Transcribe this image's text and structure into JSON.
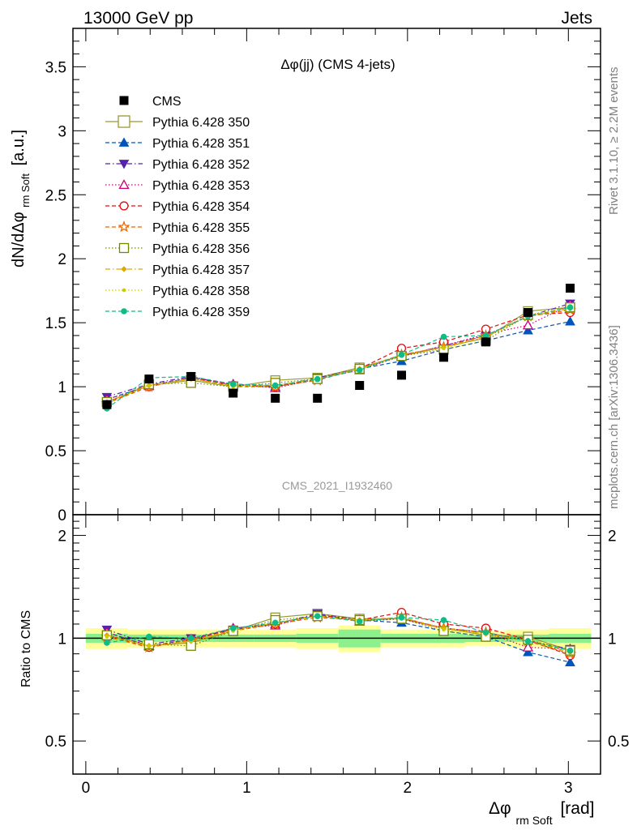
{
  "header": {
    "left": "13000 GeV pp",
    "right": "Jets",
    "side_top": "Rivet 3.1.10, ≥ 2.2M events",
    "side_bottom": "mcplots.cern.ch [arXiv:1306.3436]",
    "watermark": "CMS_2021_I1932460"
  },
  "colors": {
    "band_inner": "#8cf08c",
    "band_outer": "#ffff99",
    "data": "#000000"
  },
  "chart_data": [
    {
      "type": "line",
      "title": "Δφ(jj) (CMS 4-jets)",
      "ylabel_main": "dN/dΔφ",
      "ylabel_sub": "rm Soft",
      "ylabel_unit": "[a.u.]",
      "xlim": [
        -0.08,
        3.2
      ],
      "ylim": [
        0,
        3.8
      ],
      "yticks": [
        "0",
        "0.5",
        "1",
        "1.5",
        "2",
        "2.5",
        "3",
        "3.5"
      ],
      "legend_position": "top-left",
      "x": [
        0.131,
        0.393,
        0.654,
        0.916,
        1.178,
        1.44,
        1.702,
        1.963,
        2.225,
        2.487,
        2.749,
        3.011
      ],
      "data": {
        "name": "CMS",
        "values": [
          0.86,
          1.06,
          1.08,
          0.95,
          0.91,
          0.91,
          1.01,
          1.09,
          1.23,
          1.35,
          1.58,
          1.77
        ]
      },
      "series": [
        {
          "name": "Pythia 6.428 350",
          "color": "#999933",
          "marker": "square-open",
          "dash": "solid",
          "values": [
            0.88,
            1.01,
            1.05,
            1.0,
            1.05,
            1.07,
            1.15,
            1.24,
            1.31,
            1.38,
            1.59,
            1.62
          ]
        },
        {
          "name": "Pythia 6.428 351",
          "color": "#0055bb",
          "marker": "triangle-up",
          "dash": "dashed",
          "values": [
            0.9,
            1.01,
            1.07,
            1.02,
            1.0,
            1.06,
            1.14,
            1.2,
            1.29,
            1.36,
            1.44,
            1.51
          ]
        },
        {
          "name": "Pythia 6.428 352",
          "color": "#5522aa",
          "marker": "triangle-down",
          "dash": "dashdot",
          "values": [
            0.92,
            1.02,
            1.08,
            1.01,
            1.0,
            1.07,
            1.14,
            1.24,
            1.32,
            1.4,
            1.55,
            1.65
          ]
        },
        {
          "name": "Pythia 6.428 353",
          "color": "#cc0077",
          "marker": "triangle-open",
          "dash": "dotted",
          "values": [
            0.9,
            1.01,
            1.07,
            1.02,
            0.99,
            1.06,
            1.13,
            1.24,
            1.32,
            1.41,
            1.48,
            1.64
          ]
        },
        {
          "name": "Pythia 6.428 354",
          "color": "#dd1111",
          "marker": "circle-open",
          "dash": "dashed",
          "values": [
            0.88,
            1.0,
            1.07,
            1.01,
            1.0,
            1.06,
            1.14,
            1.3,
            1.35,
            1.45,
            1.56,
            1.58
          ]
        },
        {
          "name": "Pythia 6.428 355",
          "color": "#ee6600",
          "marker": "star-open",
          "dash": "dashed",
          "values": [
            0.87,
            1.0,
            1.07,
            1.0,
            1.0,
            1.05,
            1.14,
            1.25,
            1.31,
            1.4,
            1.55,
            1.6
          ]
        },
        {
          "name": "Pythia 6.428 356",
          "color": "#778800",
          "marker": "square-open",
          "dash": "dotted",
          "values": [
            0.88,
            1.02,
            1.03,
            1.0,
            1.03,
            1.06,
            1.14,
            1.24,
            1.29,
            1.36,
            1.56,
            1.62
          ]
        },
        {
          "name": "Pythia 6.428 357",
          "color": "#ddaa00",
          "marker": "diamond-small",
          "dash": "dashdot",
          "values": [
            0.88,
            1.01,
            1.06,
            1.01,
            1.01,
            1.06,
            1.14,
            1.25,
            1.31,
            1.39,
            1.55,
            1.61
          ]
        },
        {
          "name": "Pythia 6.428 358",
          "color": "#cccc00",
          "marker": "dot",
          "dash": "dotted",
          "values": [
            0.87,
            1.01,
            1.06,
            1.0,
            1.01,
            1.06,
            1.14,
            1.24,
            1.3,
            1.39,
            1.56,
            1.62
          ]
        },
        {
          "name": "Pythia 6.428 359",
          "color": "#11bb88",
          "marker": "circle-filled",
          "dash": "dashed",
          "values": [
            0.83,
            1.07,
            1.08,
            1.02,
            1.01,
            1.06,
            1.13,
            1.25,
            1.39,
            1.4,
            1.55,
            1.62
          ]
        }
      ]
    },
    {
      "type": "line",
      "ylabel": "Ratio to CMS",
      "xlabel_main": "Δφ",
      "xlabel_sub": "rm Soft",
      "xlabel_unit": "[rad]",
      "xlim": [
        -0.08,
        3.2
      ],
      "ylim": [
        0.4,
        2.3
      ],
      "log_y": true,
      "reference_line": 1,
      "xticks": [
        "0",
        "1",
        "2",
        "3"
      ],
      "yticks": [
        "0.5",
        "1",
        "2"
      ],
      "band_edges": [
        0.0,
        0.262,
        0.524,
        0.785,
        1.047,
        1.309,
        1.571,
        1.833,
        2.094,
        2.356,
        2.618,
        2.88,
        3.142
      ],
      "band_inner": [
        0.03,
        0.025,
        0.025,
        0.025,
        0.025,
        0.03,
        0.06,
        0.03,
        0.03,
        0.025,
        0.025,
        0.03
      ],
      "band_outer": [
        0.07,
        0.06,
        0.06,
        0.06,
        0.06,
        0.07,
        0.09,
        0.06,
        0.06,
        0.05,
        0.06,
        0.07
      ],
      "ratios": [
        [
          1.02,
          0.95,
          0.97,
          1.05,
          1.15,
          1.18,
          1.14,
          1.14,
          1.07,
          1.02,
          1.01,
          0.92
        ],
        [
          1.04,
          0.95,
          0.99,
          1.07,
          1.1,
          1.17,
          1.13,
          1.11,
          1.05,
          1.01,
          0.91,
          0.85
        ],
        [
          1.06,
          0.96,
          1.0,
          1.06,
          1.1,
          1.18,
          1.13,
          1.14,
          1.07,
          1.04,
          0.98,
          0.93
        ],
        [
          1.04,
          0.95,
          0.99,
          1.07,
          1.09,
          1.17,
          1.12,
          1.14,
          1.07,
          1.04,
          0.94,
          0.93
        ],
        [
          1.02,
          0.94,
          0.99,
          1.06,
          1.1,
          1.17,
          1.13,
          1.19,
          1.1,
          1.07,
          0.99,
          0.89
        ],
        [
          1.01,
          0.94,
          0.99,
          1.05,
          1.1,
          1.15,
          1.13,
          1.15,
          1.07,
          1.04,
          0.98,
          0.9
        ],
        [
          1.02,
          0.96,
          0.95,
          1.05,
          1.13,
          1.16,
          1.13,
          1.14,
          1.05,
          1.01,
          0.99,
          0.92
        ],
        [
          1.02,
          0.95,
          0.98,
          1.06,
          1.11,
          1.16,
          1.13,
          1.15,
          1.07,
          1.03,
          0.98,
          0.91
        ],
        [
          1.01,
          0.95,
          0.98,
          1.05,
          1.11,
          1.16,
          1.13,
          1.14,
          1.06,
          1.03,
          0.99,
          0.92
        ],
        [
          0.97,
          1.01,
          1.0,
          1.07,
          1.11,
          1.16,
          1.12,
          1.15,
          1.13,
          1.04,
          0.98,
          0.92
        ]
      ]
    }
  ]
}
